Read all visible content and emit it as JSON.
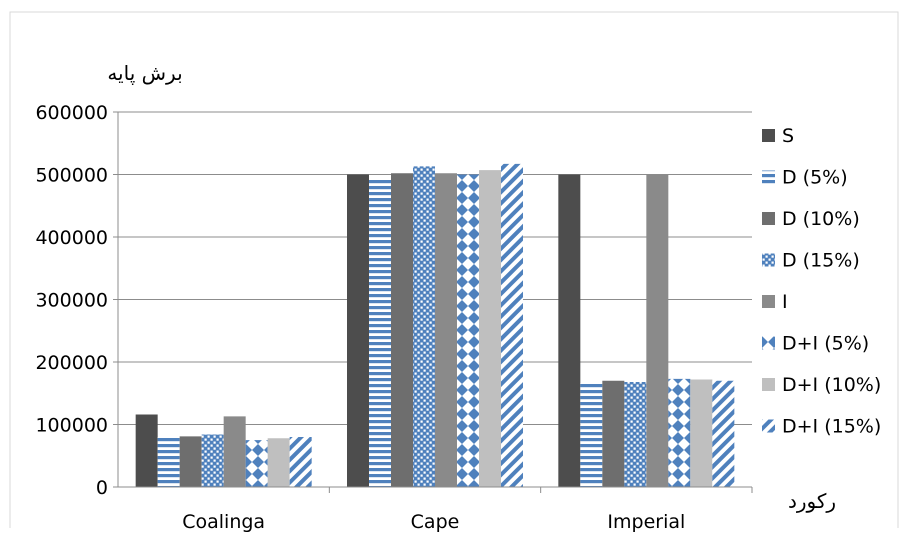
{
  "chart_data": {
    "type": "bar",
    "title": "",
    "ylabel": "برش پایه",
    "xlabel": "رکورد",
    "categories": [
      "Coalinga",
      "Cape",
      "Imperial"
    ],
    "ylim": [
      0,
      600000
    ],
    "yticks": [
      0,
      100000,
      200000,
      300000,
      400000,
      500000,
      600000
    ],
    "grid": true,
    "legend_position": "right",
    "series": [
      {
        "name": "S",
        "pattern": "solid-dark",
        "color": "#4d4d4d",
        "values": [
          116000,
          500000,
          500000
        ]
      },
      {
        "name": "D (5%)",
        "pattern": "horizontal",
        "color": "#4f81bd",
        "values": [
          80000,
          495000,
          166000
        ]
      },
      {
        "name": "D (10%)",
        "pattern": "solid-mid",
        "color": "#6e6e6e",
        "values": [
          81000,
          502000,
          170000
        ]
      },
      {
        "name": "D (15%)",
        "pattern": "dots",
        "color": "#4f81bd",
        "values": [
          84000,
          513000,
          168000
        ]
      },
      {
        "name": "I",
        "pattern": "solid-gray",
        "color": "#8a8a8a",
        "values": [
          113000,
          502000,
          500000
        ]
      },
      {
        "name": "D+I (5%)",
        "pattern": "diamonds",
        "color": "#4f81bd",
        "values": [
          75000,
          500000,
          173000
        ]
      },
      {
        "name": "D+I (10%)",
        "pattern": "solid-light",
        "color": "#bfbfbf",
        "values": [
          78000,
          507000,
          172000
        ]
      },
      {
        "name": "D+I (15%)",
        "pattern": "diagonal",
        "color": "#4f81bd",
        "values": [
          80000,
          517000,
          170000
        ]
      }
    ]
  }
}
